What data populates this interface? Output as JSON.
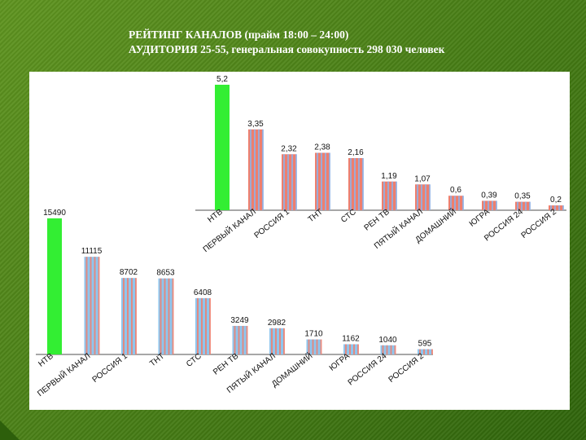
{
  "header": {
    "line1": "РЕЙТИНГ КАНАЛОВ (прайм 18:00 – 24:00)",
    "line2": "АУДИТОРИЯ 25-55, генеральная совокупность 298 030 человек"
  },
  "colors": {
    "highlight": "#33ee33",
    "bar_rating": "#ee7f6e",
    "stripe_rating": "#8fb2e6",
    "bar_audience": "#8ec6ee",
    "stripe_audience": "#ee7f6e",
    "axis": "#8a8a8a",
    "background": "#4a8218"
  },
  "chart_data": [
    {
      "type": "bar",
      "categories": [
        "НТВ",
        "ПЕРВЫЙ КАНАЛ",
        "РОССИЯ 1",
        "ТНТ",
        "СТС",
        "РЕН ТВ",
        "ПЯТЫЙ КАНАЛ",
        "ДОМАШНИЙ",
        "ЮГРА",
        "РОССИЯ 24",
        "РОССИЯ 2"
      ],
      "values": [
        5.2,
        3.35,
        2.32,
        2.38,
        2.16,
        1.19,
        1.07,
        0.6,
        0.39,
        0.35,
        0.2
      ],
      "value_labels": [
        "5,2",
        "3,35",
        "2,32",
        "2,38",
        "2,16",
        "1,19",
        "1,07",
        "0,6",
        "0,39",
        "0,35",
        "0,2"
      ],
      "ylim": [
        0,
        5.2
      ]
    },
    {
      "type": "bar",
      "categories": [
        "НТВ",
        "ПЕРВЫЙ КАНАЛ",
        "РОССИЯ 1",
        "ТНТ",
        "СТС",
        "РЕН ТВ",
        "ПЯТЫЙ КАНАЛ",
        "ДОМАШНИЙ",
        "ЮГРА",
        "РОССИЯ 24",
        "РОССИЯ 2"
      ],
      "values": [
        15490,
        11115,
        8702,
        8653,
        6408,
        3249,
        2982,
        1710,
        1162,
        1040,
        595
      ],
      "value_labels": [
        "15490",
        "11115",
        "8702",
        "8653",
        "6408",
        "3249",
        "2982",
        "1710",
        "1162",
        "1040",
        "595"
      ],
      "ylim": [
        0,
        15490
      ]
    }
  ]
}
